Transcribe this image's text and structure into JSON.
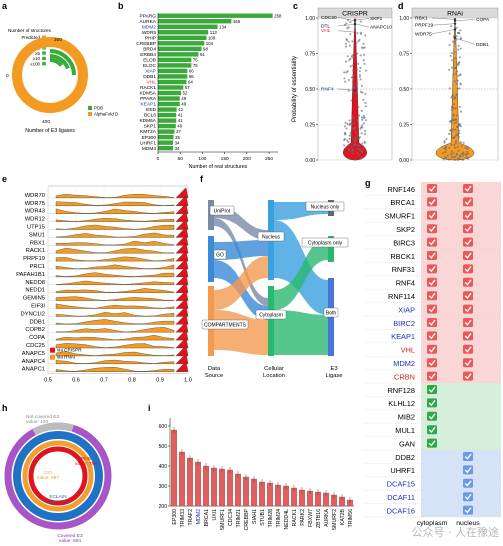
{
  "panel_letters": [
    "a",
    "b",
    "c",
    "d",
    "e",
    "f",
    "g",
    "h",
    "i"
  ],
  "watermark": "公众号 · 人在豫途",
  "chart_data": [
    {
      "id": "a",
      "type": "donut",
      "legend_title": "Number of structures",
      "legend_items": [
        "Predicted",
        "1",
        "≥2",
        "≥5",
        "≥10",
        "≥100"
      ],
      "series_legend": [
        "PDB",
        "AlphaFold DB"
      ],
      "ticks": [
        "0",
        "200",
        "400"
      ],
      "xlabel": "Number of E3 ligases",
      "colors": {
        "PDB": "#3aaa3a",
        "AlphaFold DB": "#f39a20"
      }
    },
    {
      "id": "b",
      "type": "bar",
      "orientation": "horizontal",
      "categories": [
        "PPARG",
        "AURKA",
        "MDM2",
        "WDR5",
        "PHIP",
        "CREBBP",
        "BRD4",
        "ERBB4",
        "ELOB",
        "ELOC",
        "XIAP",
        "DDB1",
        "VHL",
        "RACK1",
        "KDM5A",
        "PPARA",
        "KEAP1",
        "EED",
        "BCL6",
        "KDM6A",
        "SKP1",
        "KMT2A",
        "EP300",
        "UHRF1",
        "MDM4"
      ],
      "label_colors": {
        "MDM2": "#1a32b4",
        "XIAP": "#1a32b4",
        "KEAP1": "#1a32b4",
        "VHL": "#d42020"
      },
      "values": [
        258,
        165,
        134,
        113,
        109,
        104,
        98,
        91,
        75,
        75,
        66,
        66,
        64,
        57,
        52,
        49,
        49,
        42,
        41,
        41,
        40,
        37,
        35,
        34,
        34
      ],
      "xticks": [
        "0",
        "50",
        "100",
        "150",
        "200",
        "250"
      ],
      "xlim": [
        0,
        270
      ],
      "xlabel": "Number of real structures",
      "color": "#3aaa3a"
    },
    {
      "id": "c",
      "type": "violin",
      "title": "CRISPR",
      "ylabel": "Probability of essentiality",
      "yticks": [
        "0.00",
        "0.25",
        "0.50",
        "0.75",
        "1.00"
      ],
      "ylim": [
        0,
        1
      ],
      "annotations": [
        {
          "label": "CDC20",
          "y": 0.98,
          "color": "#000"
        },
        {
          "label": "DTL",
          "y": 0.955,
          "color": "#000"
        },
        {
          "label": "SKP1",
          "y": 0.985,
          "color": "#000"
        },
        {
          "label": "ANAPC10",
          "y": 0.96,
          "color": "#000"
        },
        {
          "label": "VHL",
          "y": 0.9,
          "color": "#d42020"
        },
        {
          "label": "RNF4",
          "y": 0.49,
          "color": "#1a32b4"
        }
      ],
      "fill": "#e0141e"
    },
    {
      "id": "d",
      "type": "violin",
      "title": "RNAi",
      "yticks": [
        "0.00",
        "0.25",
        "0.50",
        "0.75",
        "1.00"
      ],
      "ylim": [
        0,
        1
      ],
      "annotations": [
        {
          "label": "RBX1",
          "y": 0.99,
          "color": "#000"
        },
        {
          "label": "PRPF19",
          "y": 0.96,
          "color": "#000"
        },
        {
          "label": "WDR75",
          "y": 0.92,
          "color": "#000"
        },
        {
          "label": "COPA",
          "y": 0.98,
          "color": "#000"
        },
        {
          "label": "DDB1",
          "y": 0.86,
          "color": "#000"
        }
      ],
      "fill": "#f39a20"
    },
    {
      "id": "e",
      "type": "ridgeline",
      "categories": [
        "WDR70",
        "WDR75",
        "WDR43",
        "WDR12",
        "UTP15",
        "SMU1",
        "RBX1",
        "RACK1",
        "PRPF19",
        "PRC1",
        "PAFAH1B1",
        "NEDD8",
        "NEDD1",
        "GEMIN5",
        "EIF3I",
        "DYNC1I2",
        "DDB1",
        "COPB2",
        "COPA",
        "CDC25",
        "ANAPC5",
        "ANAPC4",
        "ANAPC1"
      ],
      "xticks": [
        "0.5",
        "0.6",
        "0.7",
        "0.8",
        "0.9",
        "1.0"
      ],
      "xlim": [
        0.5,
        1.0
      ],
      "legend": [
        "via CRISPR",
        "via RNAi"
      ],
      "colors": {
        "via CRISPR": "#e0141e",
        "via RNAi": "#f39a20"
      }
    },
    {
      "id": "f",
      "type": "sankey",
      "source_nodes": [
        "UniProt",
        "GO",
        "COMPARTMENTS"
      ],
      "location_nodes": [
        "Nucleus",
        "Cytoplasm"
      ],
      "ligase_nodes": [
        "Nucleus only",
        "Cytoplasm only",
        "Both"
      ],
      "axis_labels": [
        "Data\nSource",
        "Cellular\nLocation",
        "E3\nLigase"
      ],
      "colors": {
        "UniProt": "#7a8aa8",
        "GO": "#3a8ad8",
        "COMPARTMENTS": "#f39a50",
        "Nucleus": "#3aa0e0",
        "Cytoplasm": "#2ab870",
        "Both": "#4a72d8"
      }
    },
    {
      "id": "g",
      "type": "table",
      "columns": [
        "cytoplasm",
        "nucleus"
      ],
      "rows": [
        {
          "name": "RNF146",
          "c": true,
          "n": true,
          "color": "#000"
        },
        {
          "name": "BRCA1",
          "c": true,
          "n": true,
          "color": "#000"
        },
        {
          "name": "SMURF1",
          "c": true,
          "n": true,
          "color": "#000"
        },
        {
          "name": "SKP2",
          "c": true,
          "n": true,
          "color": "#000"
        },
        {
          "name": "BIRC3",
          "c": true,
          "n": true,
          "color": "#000"
        },
        {
          "name": "RBCK1",
          "c": true,
          "n": true,
          "color": "#000"
        },
        {
          "name": "RNF31",
          "c": true,
          "n": true,
          "color": "#000"
        },
        {
          "name": "RNF4",
          "c": true,
          "n": true,
          "color": "#000"
        },
        {
          "name": "RNF114",
          "c": true,
          "n": true,
          "color": "#000"
        },
        {
          "name": "XIAP",
          "c": true,
          "n": true,
          "color": "#1a32b4"
        },
        {
          "name": "BIRC2",
          "c": true,
          "n": true,
          "color": "#1a32b4"
        },
        {
          "name": "KEAP1",
          "c": true,
          "n": true,
          "color": "#1a32b4"
        },
        {
          "name": "VHL",
          "c": true,
          "n": true,
          "color": "#d42020"
        },
        {
          "name": "MDM2",
          "c": true,
          "n": true,
          "color": "#1a32b4"
        },
        {
          "name": "CRBN",
          "c": true,
          "n": true,
          "color": "#d42020"
        },
        {
          "name": "RNF128",
          "c": true,
          "n": false,
          "color": "#000"
        },
        {
          "name": "KLHL12",
          "c": true,
          "n": false,
          "color": "#000"
        },
        {
          "name": "MIB2",
          "c": true,
          "n": false,
          "color": "#000"
        },
        {
          "name": "MUL1",
          "c": true,
          "n": false,
          "color": "#000"
        },
        {
          "name": "GAN",
          "c": true,
          "n": false,
          "color": "#000"
        },
        {
          "name": "DDB2",
          "c": false,
          "n": true,
          "color": "#000"
        },
        {
          "name": "UHRF1",
          "c": false,
          "n": true,
          "color": "#000"
        },
        {
          "name": "DCAF15",
          "c": false,
          "n": true,
          "color": "#1a32b4"
        },
        {
          "name": "DCAF11",
          "c": false,
          "n": true,
          "color": "#1a32b4"
        },
        {
          "name": "DCAF16",
          "c": false,
          "n": true,
          "color": "#1a32b4"
        }
      ],
      "group_colors": {
        "both": "#fbd6d6",
        "cytoplasm": "#d6efdb",
        "nucleus": "#d6e2f7"
      },
      "check_colors": {
        "both": "#e85a5a",
        "cytoplasm": "#2ea84a",
        "nucleus": "#6a9ae6"
      }
    },
    {
      "id": "h",
      "type": "multi-ring",
      "labels": [
        {
          "text": "Not covered E3",
          "value": "value: 120",
          "color": "#888"
        },
        {
          "text": "PDB",
          "value": "value: 789",
          "color": "#e0141e"
        },
        {
          "text": "GO",
          "value": "value: 987",
          "color": "#e8a030"
        },
        {
          "text": "ECLAIN",
          "value": "value: 1774",
          "color": "#1a6ab4"
        },
        {
          "text": "Covered E3",
          "value": "value: 854",
          "color": "#8a3ab0"
        }
      ],
      "rings": [
        {
          "name": "Covered E3",
          "value": 854,
          "color": "#a855c8"
        },
        {
          "name": "ECLAIN",
          "value": 1774,
          "color": "#1f72c4"
        },
        {
          "name": "GO",
          "value": 987,
          "color": "#f0a030"
        },
        {
          "name": "PDB",
          "value": 789,
          "color": "#e0141e"
        }
      ]
    },
    {
      "id": "i",
      "type": "bar",
      "categories": [
        "EP300",
        "TRIM33",
        "TRAF2",
        "MDM2",
        "BRCA1",
        "UXI1",
        "SMURF1",
        "CDC34",
        "TRIM21",
        "CREBBP",
        "SIAH1",
        "STUB1",
        "TRIM28",
        "TRIM24",
        "NEDD4L",
        "RACK1",
        "PARK2",
        "FBXW7",
        "ZBTB16",
        "AURKA",
        "SMURF2",
        "KAT2B",
        "TRIM56"
      ],
      "label_colors": {
        "MDM2": "#1a32b4"
      },
      "values": [
        580,
        470,
        440,
        420,
        400,
        390,
        385,
        380,
        360,
        345,
        335,
        320,
        315,
        305,
        300,
        290,
        280,
        275,
        270,
        265,
        255,
        245,
        230
      ],
      "yticks": [
        "200",
        "300",
        "400",
        "500",
        "600"
      ],
      "ylim": [
        200,
        640
      ],
      "color": "#e06060"
    }
  ]
}
